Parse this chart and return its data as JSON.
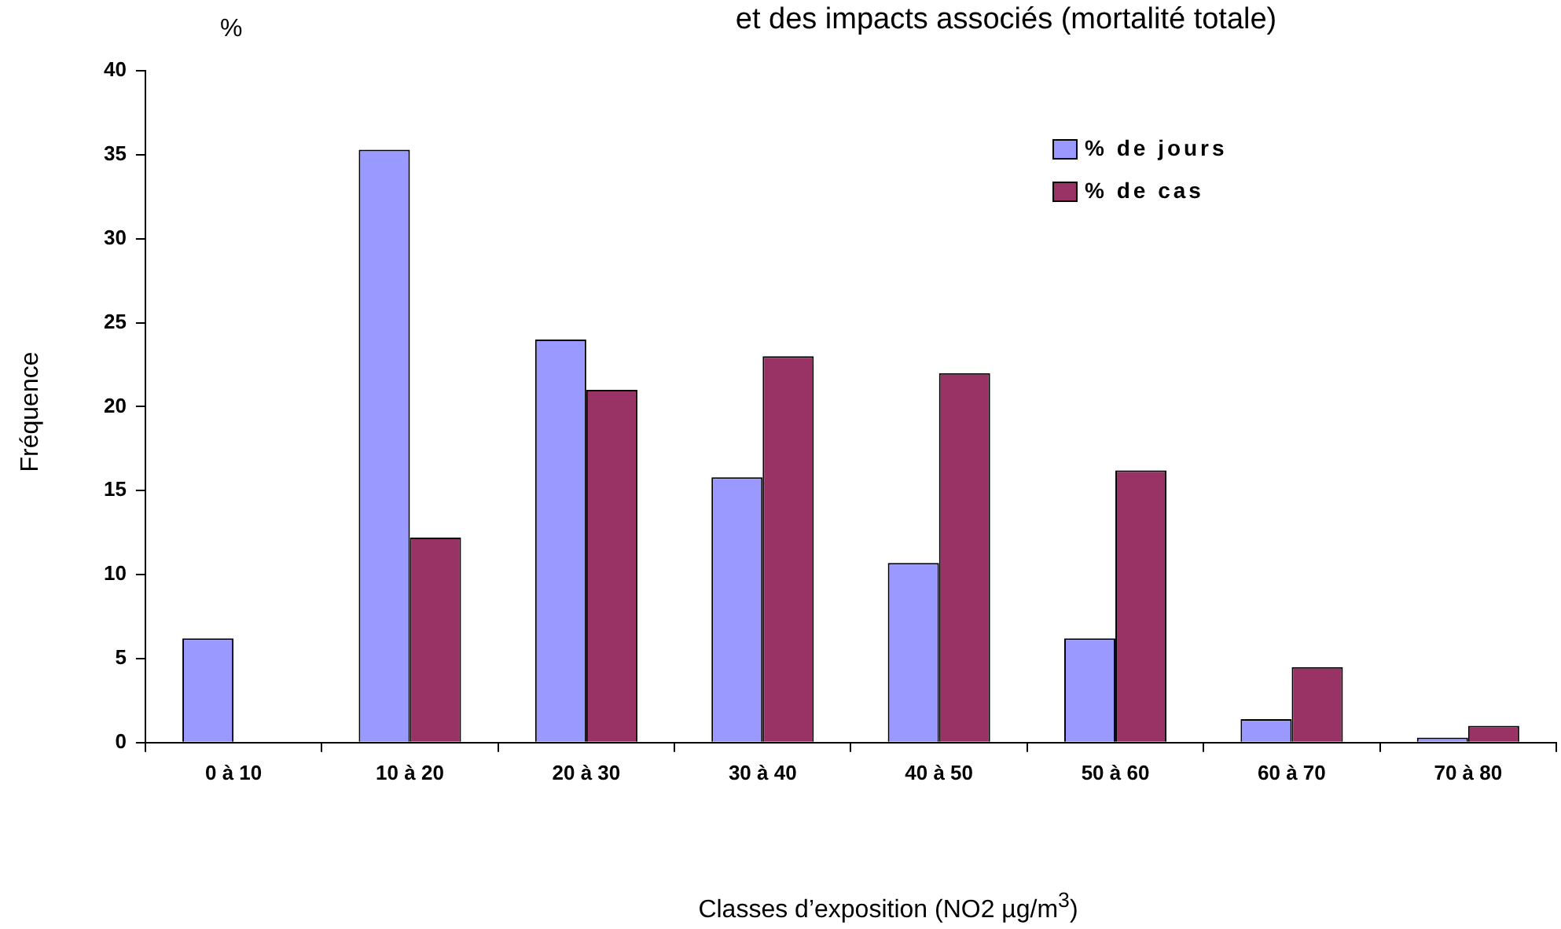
{
  "chart_data": {
    "type": "bar",
    "title": "et des impacts associés (mortalité totale)",
    "xlabel": "Classes d’exposition (NO2 µg/m$^{3}$)",
    "ylabel": "Fréquence",
    "annotations": [
      "%"
    ],
    "categories": [
      "0 à 10",
      "10 à 20",
      "20 à 30",
      "30 à 40",
      "40 à 50",
      "50 à 60",
      "60 à 70",
      "70 à 80"
    ],
    "series": [
      {
        "name": "% de jours",
        "color": "#9999ff",
        "values": [
          6.2,
          35.3,
          24.0,
          15.8,
          10.7,
          6.2,
          1.4,
          0.3
        ]
      },
      {
        "name": "% de cas",
        "color": "#993366",
        "values": [
          null,
          12.2,
          21.0,
          23.0,
          22.0,
          16.2,
          4.5,
          1.0
        ]
      }
    ],
    "ylim": [
      0,
      40
    ],
    "yticks": [
      0,
      5,
      10,
      15,
      20,
      25,
      30,
      35,
      40
    ],
    "grid": false,
    "legend": "top right"
  }
}
